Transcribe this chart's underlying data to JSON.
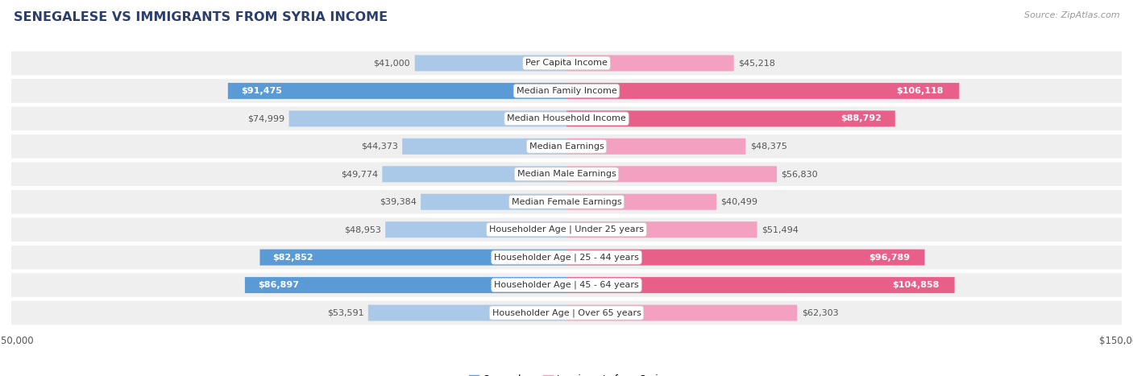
{
  "title": "SENEGALESE VS IMMIGRANTS FROM SYRIA INCOME",
  "source": "Source: ZipAtlas.com",
  "categories": [
    "Per Capita Income",
    "Median Family Income",
    "Median Household Income",
    "Median Earnings",
    "Median Male Earnings",
    "Median Female Earnings",
    "Householder Age | Under 25 years",
    "Householder Age | 25 - 44 years",
    "Householder Age | 45 - 64 years",
    "Householder Age | Over 65 years"
  ],
  "senegalese": [
    41000,
    91475,
    74999,
    44373,
    49774,
    39384,
    48953,
    82852,
    86897,
    53591
  ],
  "syria": [
    45218,
    106118,
    88792,
    48375,
    56830,
    40499,
    51494,
    96789,
    104858,
    62303
  ],
  "senegalese_labels": [
    "$41,000",
    "$91,475",
    "$74,999",
    "$44,373",
    "$49,774",
    "$39,384",
    "$48,953",
    "$82,852",
    "$86,897",
    "$53,591"
  ],
  "syria_labels": [
    "$45,218",
    "$106,118",
    "$88,792",
    "$48,375",
    "$56,830",
    "$40,499",
    "$51,494",
    "$96,789",
    "$104,858",
    "$62,303"
  ],
  "max_val": 150000,
  "color_senegalese_light": "#aac9e8",
  "color_senegalese_dark": "#5b9bd5",
  "color_syria_light": "#f4a0c0",
  "color_syria_dark": "#e8608a",
  "threshold_dark": 75000,
  "legend_blue": "#5b9bd5",
  "legend_pink": "#f4a0c0",
  "bar_height": 0.58,
  "row_bg_light": "#eeeeee",
  "row_bg_dark": "#e0e0e0",
  "title_color": "#2c3e6b",
  "label_dark_color": "#333333",
  "label_outside_color": "#555555"
}
